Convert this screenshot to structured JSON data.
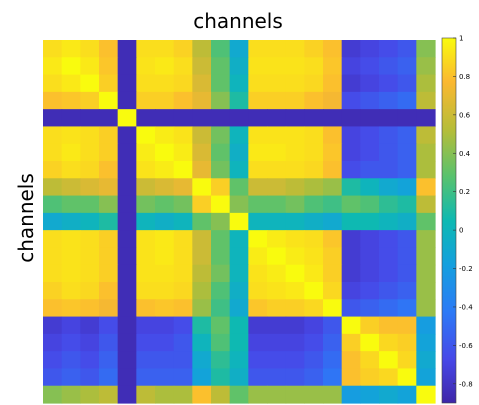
{
  "chart_data": {
    "type": "heatmap",
    "title": "channels",
    "xlabel": "",
    "ylabel": "channels",
    "grid": false,
    "size": 21,
    "colorbar": {
      "range": [
        -0.9,
        1
      ],
      "ticks": [
        "1",
        "0.8",
        "0.6",
        "0.4",
        "0.2",
        "0",
        "-0.2",
        "-0.4",
        "-0.6",
        "-0.8"
      ],
      "tick_values": [
        1,
        0.8,
        0.6,
        0.4,
        0.2,
        0,
        -0.2,
        -0.4,
        -0.6,
        -0.8
      ]
    },
    "values": [
      [
        0.9,
        0.94,
        0.9,
        0.8,
        -0.85,
        0.9,
        0.9,
        0.86,
        0.55,
        0.25,
        -0.1,
        0.9,
        0.9,
        0.9,
        0.86,
        0.8,
        -0.75,
        -0.7,
        -0.65,
        -0.6,
        0.4
      ],
      [
        0.94,
        1.0,
        0.94,
        0.82,
        -0.85,
        0.92,
        0.94,
        0.9,
        0.6,
        0.3,
        -0.05,
        0.92,
        0.92,
        0.92,
        0.9,
        0.82,
        -0.7,
        -0.65,
        -0.6,
        -0.55,
        0.45
      ],
      [
        0.9,
        0.94,
        1.0,
        0.85,
        -0.85,
        0.9,
        0.9,
        0.88,
        0.65,
        0.3,
        0.0,
        0.9,
        0.9,
        0.9,
        0.88,
        0.8,
        -0.75,
        -0.7,
        -0.65,
        -0.6,
        0.5
      ],
      [
        0.8,
        0.82,
        0.85,
        1.0,
        -0.85,
        0.85,
        0.85,
        0.8,
        0.7,
        0.4,
        0.1,
        0.85,
        0.85,
        0.85,
        0.8,
        0.75,
        -0.65,
        -0.6,
        -0.55,
        -0.5,
        0.55
      ],
      [
        -0.85,
        -0.85,
        -0.85,
        -0.85,
        1.0,
        -0.85,
        -0.85,
        -0.85,
        -0.85,
        -0.85,
        -0.85,
        -0.85,
        -0.85,
        -0.85,
        -0.85,
        -0.85,
        -0.85,
        -0.85,
        -0.85,
        -0.85,
        -0.85
      ],
      [
        0.9,
        0.92,
        0.9,
        0.85,
        -0.85,
        1.0,
        0.95,
        0.92,
        0.6,
        0.35,
        0.0,
        0.92,
        0.92,
        0.92,
        0.9,
        0.8,
        -0.7,
        -0.65,
        -0.6,
        -0.55,
        0.55
      ],
      [
        0.9,
        0.94,
        0.9,
        0.85,
        -0.85,
        0.95,
        1.0,
        0.95,
        0.65,
        0.3,
        -0.05,
        0.94,
        0.94,
        0.92,
        0.9,
        0.82,
        -0.7,
        -0.65,
        -0.6,
        -0.55,
        0.5
      ],
      [
        0.86,
        0.9,
        0.88,
        0.8,
        -0.85,
        0.92,
        0.95,
        1.0,
        0.7,
        0.35,
        0.0,
        0.9,
        0.9,
        0.9,
        0.88,
        0.8,
        -0.65,
        -0.6,
        -0.6,
        -0.55,
        0.5
      ],
      [
        0.55,
        0.6,
        0.65,
        0.7,
        -0.85,
        0.6,
        0.65,
        0.7,
        1.0,
        0.85,
        0.3,
        0.6,
        0.6,
        0.55,
        0.5,
        0.45,
        0.1,
        0.0,
        -0.1,
        -0.15,
        0.8
      ],
      [
        0.25,
        0.3,
        0.3,
        0.4,
        -0.85,
        0.35,
        0.3,
        0.35,
        0.85,
        1.0,
        0.4,
        0.3,
        0.3,
        0.35,
        0.25,
        0.2,
        0.3,
        0.25,
        0.15,
        0.1,
        0.55
      ],
      [
        -0.1,
        -0.05,
        0.0,
        0.1,
        -0.85,
        0.0,
        -0.05,
        0.0,
        0.3,
        0.4,
        1.0,
        0.0,
        0.0,
        0.0,
        -0.05,
        -0.1,
        0.05,
        0.05,
        0.0,
        -0.05,
        0.3
      ],
      [
        0.9,
        0.92,
        0.9,
        0.85,
        -0.85,
        0.92,
        0.94,
        0.9,
        0.6,
        0.3,
        0.0,
        1.0,
        0.95,
        0.92,
        0.9,
        0.82,
        -0.75,
        -0.7,
        -0.65,
        -0.6,
        0.45
      ],
      [
        0.9,
        0.92,
        0.9,
        0.85,
        -0.85,
        0.92,
        0.94,
        0.9,
        0.6,
        0.3,
        0.0,
        0.95,
        1.0,
        0.95,
        0.92,
        0.85,
        -0.75,
        -0.7,
        -0.65,
        -0.6,
        0.45
      ],
      [
        0.9,
        0.92,
        0.9,
        0.85,
        -0.85,
        0.92,
        0.92,
        0.9,
        0.55,
        0.35,
        0.0,
        0.92,
        0.95,
        1.0,
        0.94,
        0.85,
        -0.75,
        -0.7,
        -0.65,
        -0.6,
        0.45
      ],
      [
        0.86,
        0.9,
        0.88,
        0.8,
        -0.85,
        0.9,
        0.9,
        0.88,
        0.5,
        0.25,
        -0.05,
        0.9,
        0.92,
        0.94,
        1.0,
        0.88,
        -0.7,
        -0.65,
        -0.6,
        -0.55,
        0.45
      ],
      [
        0.8,
        0.82,
        0.8,
        0.75,
        -0.85,
        0.8,
        0.82,
        0.8,
        0.45,
        0.2,
        -0.1,
        0.82,
        0.85,
        0.85,
        0.88,
        1.0,
        -0.6,
        -0.55,
        -0.5,
        -0.45,
        0.45
      ],
      [
        -0.75,
        -0.7,
        -0.75,
        -0.65,
        -0.85,
        -0.7,
        -0.7,
        -0.65,
        0.1,
        0.3,
        0.05,
        -0.75,
        -0.75,
        -0.75,
        -0.7,
        -0.6,
        1.0,
        0.85,
        0.8,
        0.8,
        -0.2
      ],
      [
        -0.7,
        -0.65,
        -0.7,
        -0.6,
        -0.85,
        -0.65,
        -0.65,
        -0.6,
        0.0,
        0.25,
        0.05,
        -0.7,
        -0.7,
        -0.7,
        -0.65,
        -0.55,
        0.85,
        1.0,
        0.88,
        0.85,
        -0.15
      ],
      [
        -0.65,
        -0.6,
        -0.65,
        -0.55,
        -0.85,
        -0.6,
        -0.6,
        -0.6,
        -0.1,
        0.15,
        0.0,
        -0.65,
        -0.65,
        -0.65,
        -0.6,
        -0.5,
        0.8,
        0.88,
        1.0,
        0.88,
        -0.1
      ],
      [
        -0.6,
        -0.55,
        -0.6,
        -0.5,
        -0.85,
        -0.55,
        -0.55,
        -0.55,
        -0.15,
        0.1,
        -0.05,
        -0.6,
        -0.6,
        -0.6,
        -0.55,
        -0.45,
        0.8,
        0.85,
        0.88,
        1.0,
        -0.15
      ],
      [
        0.4,
        0.45,
        0.5,
        0.55,
        -0.85,
        0.55,
        0.5,
        0.5,
        0.8,
        0.55,
        0.3,
        0.45,
        0.45,
        0.45,
        0.45,
        0.45,
        -0.2,
        -0.15,
        -0.1,
        -0.15,
        1.0
      ]
    ]
  }
}
